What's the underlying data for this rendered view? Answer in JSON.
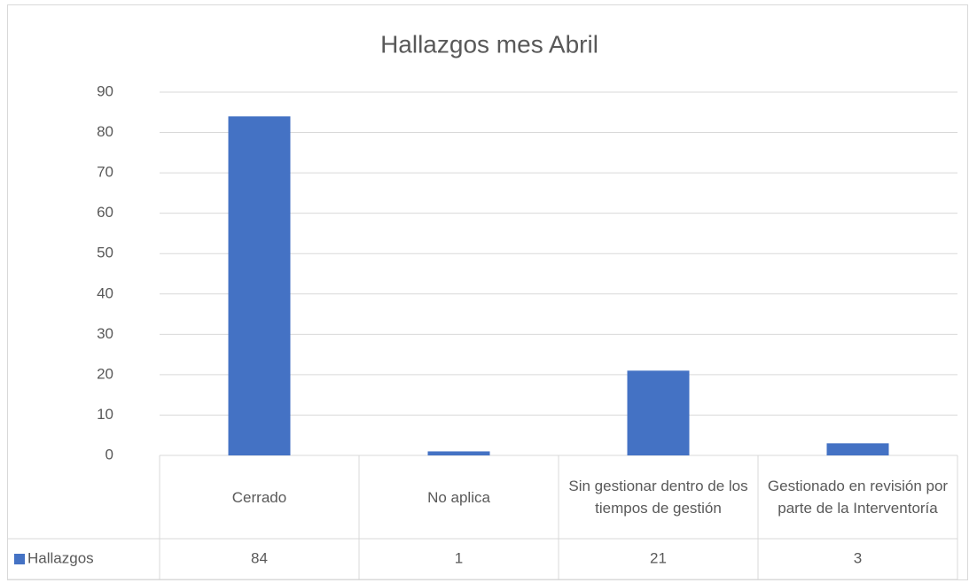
{
  "chart_data": {
    "type": "bar",
    "title": "Hallazgos mes Abril",
    "categories": [
      "Cerrado",
      "No aplica",
      "Sin gestionar dentro de los tiempos de gestión",
      "Gestionado en revisión por parte de la Interventoría"
    ],
    "series": [
      {
        "name": "Hallazgos",
        "color": "#4472c4",
        "values": [
          84,
          1,
          21,
          3
        ]
      }
    ],
    "ylim": [
      0,
      90
    ],
    "yticks": [
      0,
      10,
      20,
      30,
      40,
      50,
      60,
      70,
      80,
      90
    ],
    "grid": true,
    "data_table": true
  }
}
